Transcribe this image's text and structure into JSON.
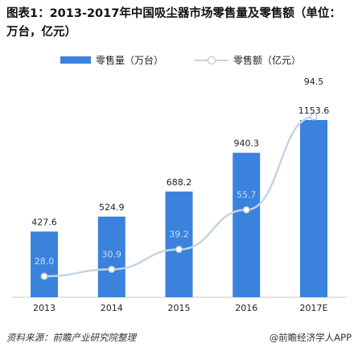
{
  "title": "图表1：2013-2017年中国吸尘器市场零售量及零售额（单位：万台，亿元）",
  "source": "资料来源：前瞻产业研究院整理",
  "brand": "@前瞻经济学人APP",
  "colors": {
    "bar": "#3b82dd",
    "line": "#c3d4e6",
    "marker_stroke": "#a9bdd3",
    "axis": "#cccccc"
  },
  "chart_data": {
    "type": "bar",
    "categories": [
      "2013",
      "2014",
      "2015",
      "2016",
      "2017E"
    ],
    "series": [
      {
        "name": "零售量（万台）",
        "type": "bar",
        "values": [
          427.6,
          524.9,
          688.2,
          940.3,
          1153.6
        ]
      },
      {
        "name": "零售额（亿元）",
        "type": "line",
        "values": [
          28.0,
          30.9,
          39.2,
          55.7,
          94.5
        ]
      }
    ],
    "legend_position": "top",
    "grid": false
  }
}
